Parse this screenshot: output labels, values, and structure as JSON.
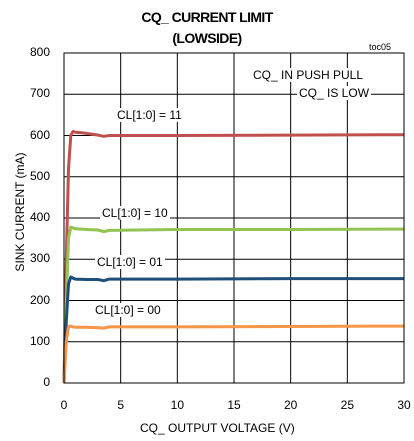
{
  "chart_data": {
    "type": "line",
    "title": "CQ_ CURRENT LIMIT",
    "subtitle": "(LOWSIDE)",
    "tag": "toc05",
    "xlabel": "CQ_ OUTPUT VOLTAGE (V)",
    "ylabel": "SINK CURRENT (mA)",
    "xlim": [
      0,
      30
    ],
    "ylim": [
      0,
      800
    ],
    "xticks": [
      "0",
      "5",
      "10",
      "15",
      "20",
      "25",
      "30"
    ],
    "yticks": [
      "0",
      "100",
      "200",
      "300",
      "400",
      "500",
      "600",
      "700",
      "800"
    ],
    "grid": true,
    "annotations": [
      "CQ_ IN PUSH PULL",
      "CQ_ IS LOW"
    ],
    "series": [
      {
        "name": "CL[1:0] = 11",
        "color": "#c0504d",
        "x": [
          0,
          0.2,
          0.4,
          0.6,
          0.8,
          1.0,
          1.5,
          2.0,
          3.0,
          3.5,
          4.0,
          10,
          20,
          30
        ],
        "y": [
          0,
          300,
          520,
          600,
          610,
          608,
          607,
          605,
          601,
          598,
          600,
          600,
          601,
          602
        ]
      },
      {
        "name": "CL[1:0] = 10",
        "color": "#92c353",
        "x": [
          0,
          0.2,
          0.4,
          0.6,
          0.8,
          1.0,
          2.0,
          3.0,
          3.5,
          4.0,
          10,
          20,
          30
        ],
        "y": [
          0,
          200,
          350,
          378,
          376,
          374,
          372,
          371,
          367,
          370,
          372,
          372,
          373
        ]
      },
      {
        "name": "CL[1:0] = 01",
        "color": "#1f4e79",
        "x": [
          0,
          0.2,
          0.4,
          0.6,
          0.8,
          1.0,
          2.0,
          3.0,
          3.5,
          4.0,
          10,
          20,
          30
        ],
        "y": [
          0,
          150,
          240,
          257,
          254,
          252,
          251,
          251,
          248,
          252,
          252,
          253,
          253
        ]
      },
      {
        "name": "CL[1:0] = 00",
        "color": "#f79646",
        "x": [
          0,
          0.2,
          0.4,
          0.6,
          0.8,
          1.0,
          2.0,
          3.0,
          3.5,
          4.0,
          10,
          20,
          30
        ],
        "y": [
          0,
          100,
          137,
          138,
          136,
          135,
          135,
          134,
          133,
          136,
          136,
          137,
          138
        ]
      }
    ],
    "series_labels": [
      "CL[1:0] = 11",
      "CL[1:0] = 10",
      "CL[1:0] = 01",
      "CL[1:0] = 00"
    ]
  }
}
